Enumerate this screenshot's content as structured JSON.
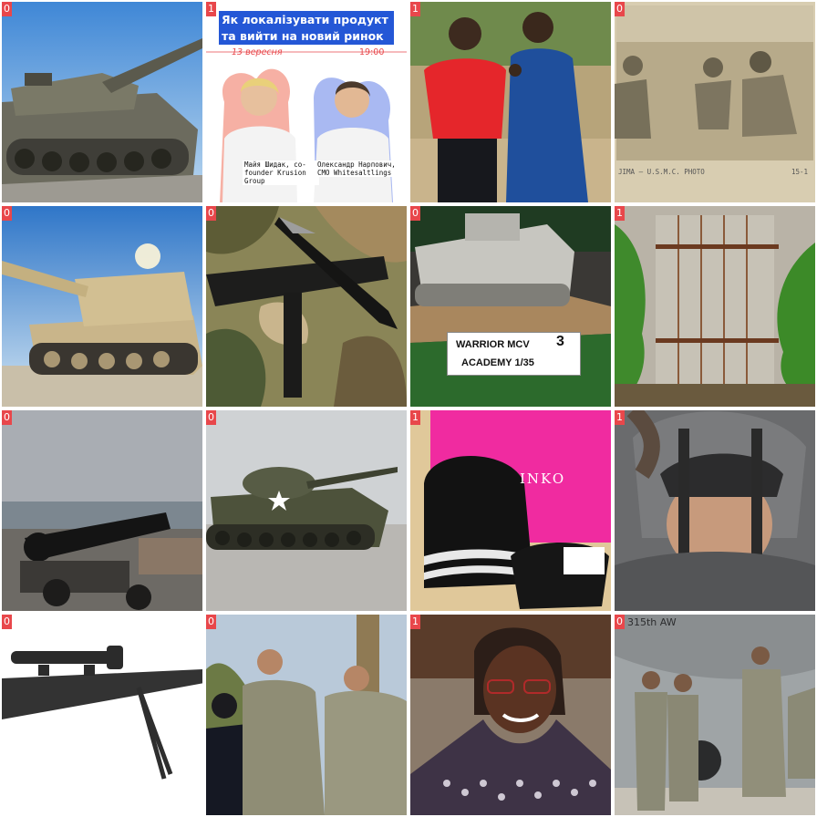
{
  "tiles": [
    {
      "label": "0",
      "subject": "tank"
    },
    {
      "label": "1",
      "subject": "webinar-poster",
      "title_line1": "Як локалізувати продукт",
      "title_line2": "та вийти на новий ринок",
      "date": "13 вересня",
      "time": "19:00",
      "speaker1": "Майя Шидак, co-founder Krusion Group",
      "speaker2": "Олександр Нарпович, CMO Whitesaltlings"
    },
    {
      "label": "1",
      "subject": "two-young-men"
    },
    {
      "label": "0",
      "subject": "ww2-marines-photo",
      "caption": "JIMA — U.S.M.C. PHOTO",
      "number": "15-1"
    },
    {
      "label": "0",
      "subject": "self-propelled-howitzer"
    },
    {
      "label": "0",
      "subject": "submachine-gun-and-knife"
    },
    {
      "label": "0",
      "subject": "un-warrior-model",
      "card_line1": "WARRIOR MCV",
      "card_number": "3",
      "card_line2": "ACADEMY 1/35"
    },
    {
      "label": "1",
      "subject": "old-wooden-door"
    },
    {
      "label": "0",
      "subject": "coastal-cannon"
    },
    {
      "label": "0",
      "subject": "m48-tank-street"
    },
    {
      "label": "1",
      "subject": "knit-hat-and-gloves",
      "bag_text": "INKO"
    },
    {
      "label": "1",
      "subject": "child-in-helmet"
    },
    {
      "label": "0",
      "subject": "scoped-rifle-bipod"
    },
    {
      "label": "0",
      "subject": "soldiers-handshake"
    },
    {
      "label": "1",
      "subject": "smiling-woman"
    },
    {
      "label": "0",
      "subject": "soldiers-aircraft",
      "tail_text": "315th AW"
    }
  ],
  "colors": {
    "badge": "#e8474b",
    "accent_blue": "#2457d6"
  }
}
